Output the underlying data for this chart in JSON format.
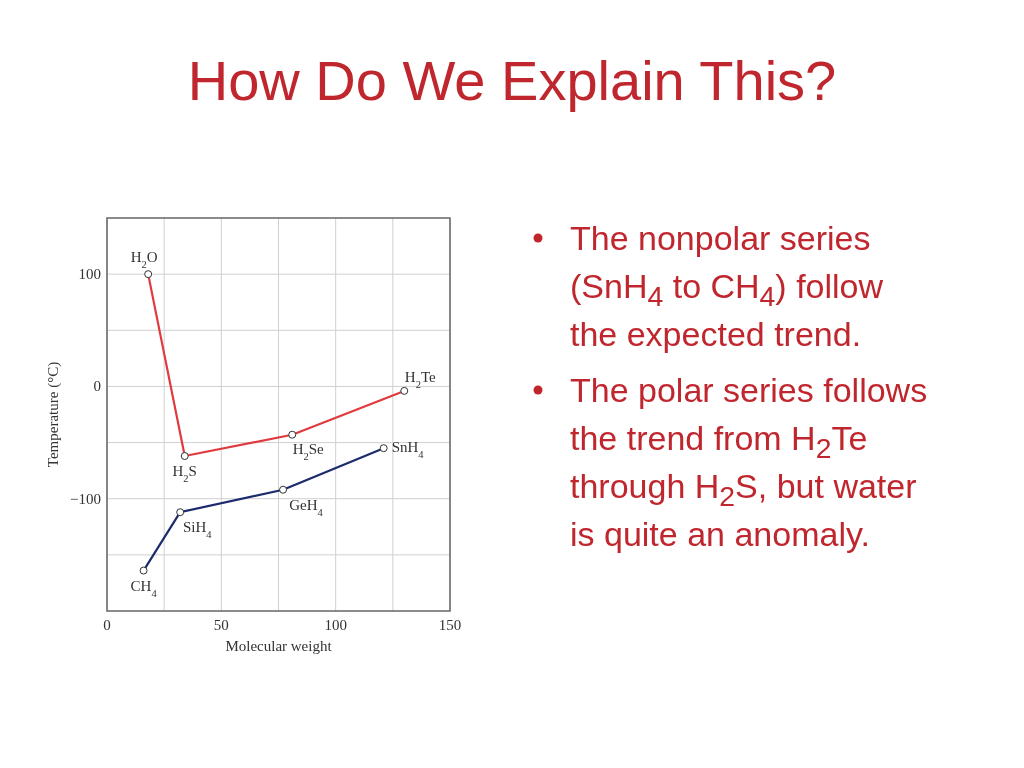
{
  "chart_data": {
    "type": "line",
    "title": "How Do We Explain This?",
    "xlabel": "Molecular weight",
    "ylabel": "Temperature (°C)",
    "xlim": [
      0,
      150
    ],
    "ylim": [
      -200,
      150
    ],
    "xticks": [
      0,
      {
        "value": 25,
        "label": null
      },
      50,
      {
        "value": 75,
        "label": null
      },
      100,
      {
        "value": 125,
        "label": null
      },
      150
    ],
    "yticks": [
      {
        "value": -150,
        "label": null
      },
      {
        "value": -100,
        "label": "−100"
      },
      {
        "value": -50,
        "label": null
      },
      0,
      {
        "value": 50,
        "label": null
      },
      100
    ],
    "grid": true,
    "marker": "circle",
    "line_style": "solid",
    "series": [
      {
        "color": "#e03a3e",
        "x": [
          18,
          34,
          81,
          130
        ],
        "values": [
          100,
          -62,
          -43,
          -4
        ]
      },
      {
        "color": "#1c2a6e",
        "x": [
          16,
          32,
          77,
          121
        ],
        "values": [
          -164,
          -112,
          -92,
          -55
        ]
      }
    ],
    "annotations": [
      {
        "text": "H$_{2}$O",
        "x": 18,
        "y": 100
      },
      {
        "text": "H$_{2}$S",
        "x": 34,
        "y": -62
      },
      {
        "text": "H$_{2}$Se",
        "x": 81,
        "y": -43
      },
      {
        "text": "H$_{2}$Te",
        "x": 130,
        "y": -4
      },
      {
        "text": "CH$_{4}$",
        "x": 16,
        "y": -164
      },
      {
        "text": "SiH$_{4}$",
        "x": 32,
        "y": -112
      },
      {
        "text": "GeH$_{4}$",
        "x": 77,
        "y": -92
      },
      {
        "text": "SnH$_{4}$",
        "x": 121,
        "y": -55
      },
      "The nonpolar series (SnH$_{4}$ to CH$_{4}$) follow the expected trend.",
      "The polar series follows the trend from H$_{2}$Te through H$_{2}$S, but water is quite an anomaly."
    ]
  }
}
